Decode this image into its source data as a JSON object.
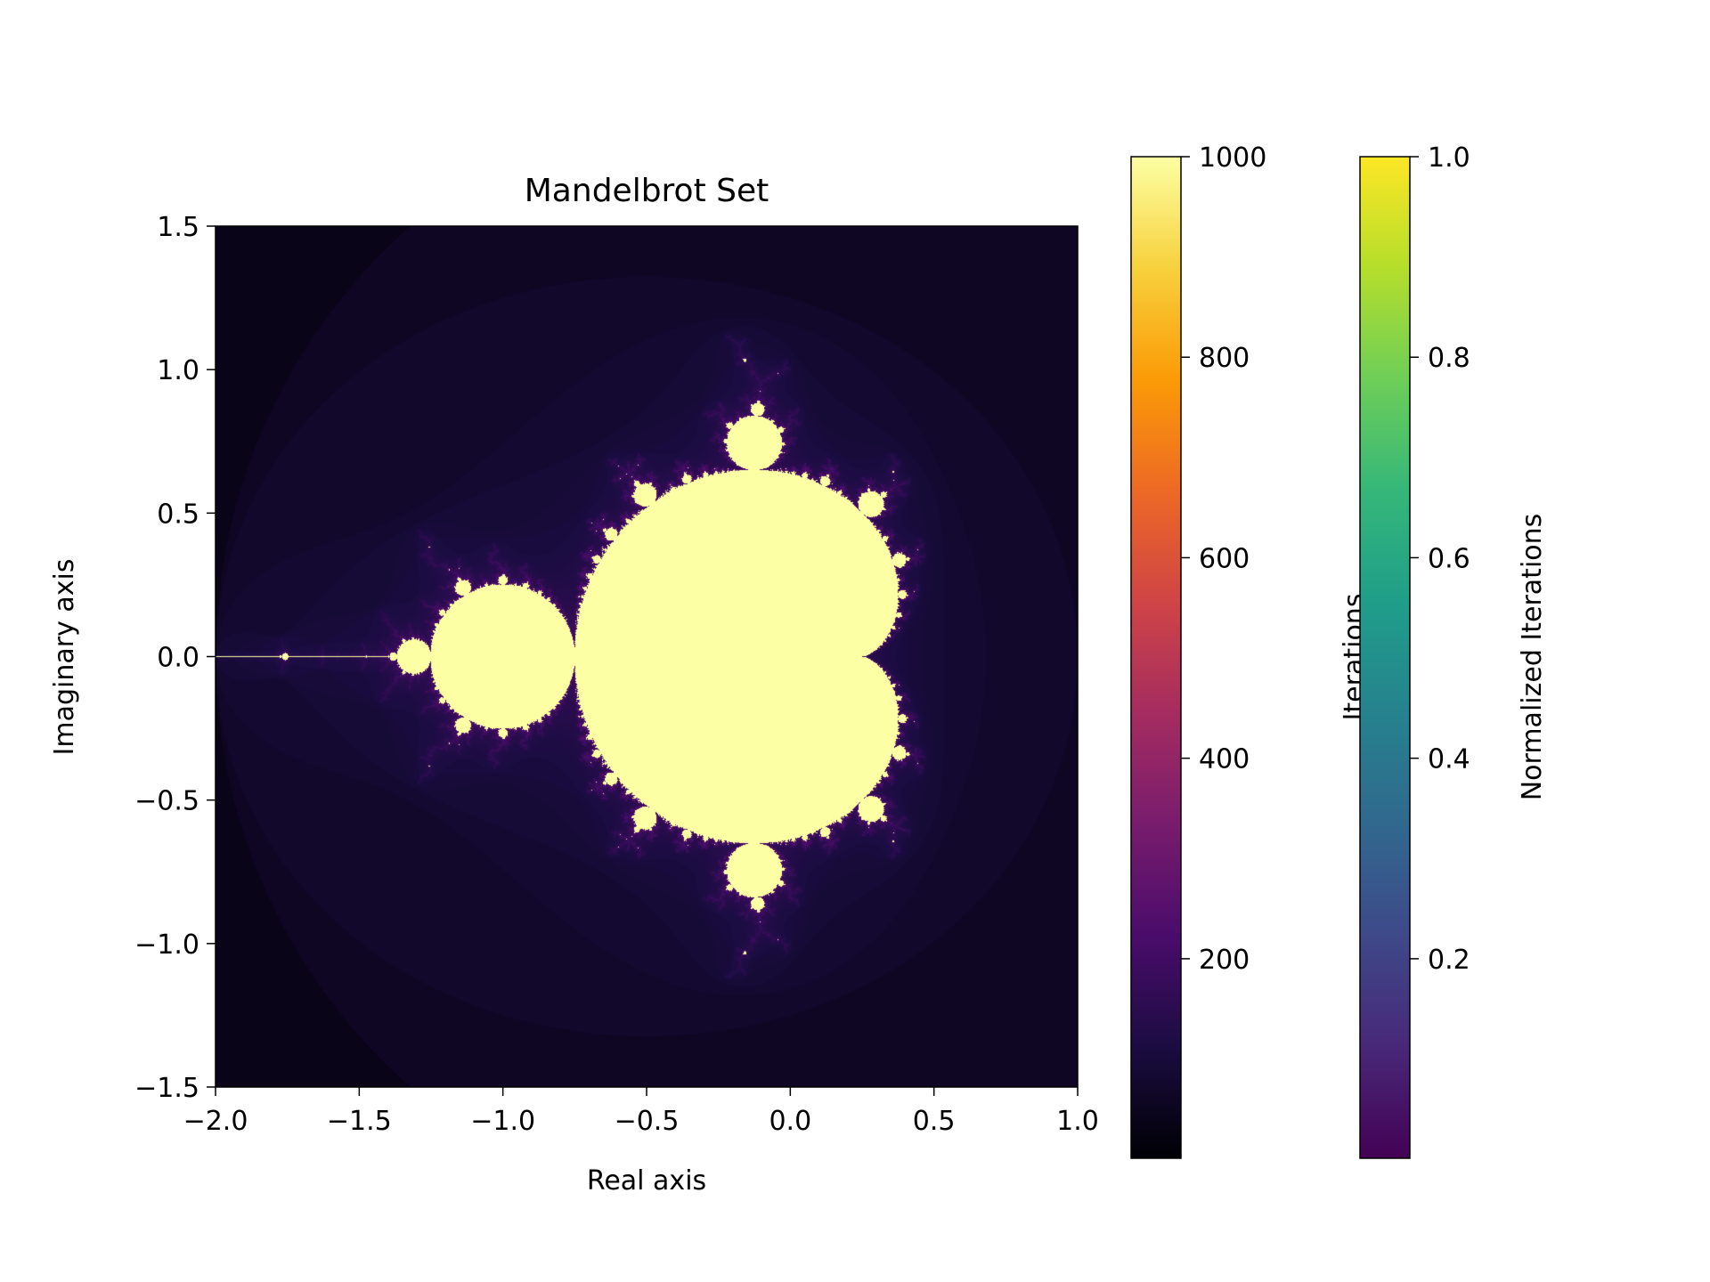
{
  "chart_data": {
    "type": "heatmap",
    "title": "Mandelbrot Set",
    "xlabel": "Real axis",
    "ylabel": "Imaginary axis",
    "xlim": [
      -2.0,
      1.0
    ],
    "ylim": [
      -1.5,
      1.5
    ],
    "x_ticks": [
      -2.0,
      -1.5,
      -1.0,
      -0.5,
      0.0,
      0.5,
      1.0
    ],
    "y_ticks": [
      -1.5,
      -1.0,
      -0.5,
      0.0,
      0.5,
      1.0,
      1.5
    ],
    "x_tick_labels": [
      "−2.0",
      "−1.5",
      "−1.0",
      "−0.5",
      "0.0",
      "0.5",
      "1.0"
    ],
    "y_tick_labels": [
      "−1.5",
      "−1.0",
      "−0.5",
      "0.0",
      "0.5",
      "1.0",
      "1.5"
    ],
    "max_iterations": 1000,
    "grid": false,
    "colormap": "inferno",
    "colorbars": [
      {
        "label": "Iterations",
        "colormap": "inferno",
        "range": [
          1,
          1000
        ],
        "ticks": [
          200,
          400,
          600,
          800,
          1000
        ],
        "tick_labels": [
          "200",
          "400",
          "600",
          "800",
          "1000"
        ],
        "stops": [
          "#000004",
          "#1b0c41",
          "#4a0c6b",
          "#781c6d",
          "#a52c60",
          "#cf4446",
          "#ed6925",
          "#fb9b06",
          "#f7d13d",
          "#fcffa4"
        ]
      },
      {
        "label": "Normalized Iterations",
        "colormap": "viridis",
        "range": [
          0.001,
          1.0
        ],
        "ticks": [
          0.2,
          0.4,
          0.6,
          0.8,
          1.0
        ],
        "tick_labels": [
          "0.2",
          "0.4",
          "0.6",
          "0.8",
          "1.0"
        ],
        "stops": [
          "#440154",
          "#482878",
          "#3e4989",
          "#31688e",
          "#26828e",
          "#1f9e89",
          "#35b779",
          "#6ece58",
          "#b5de2b",
          "#fde725"
        ]
      }
    ]
  }
}
